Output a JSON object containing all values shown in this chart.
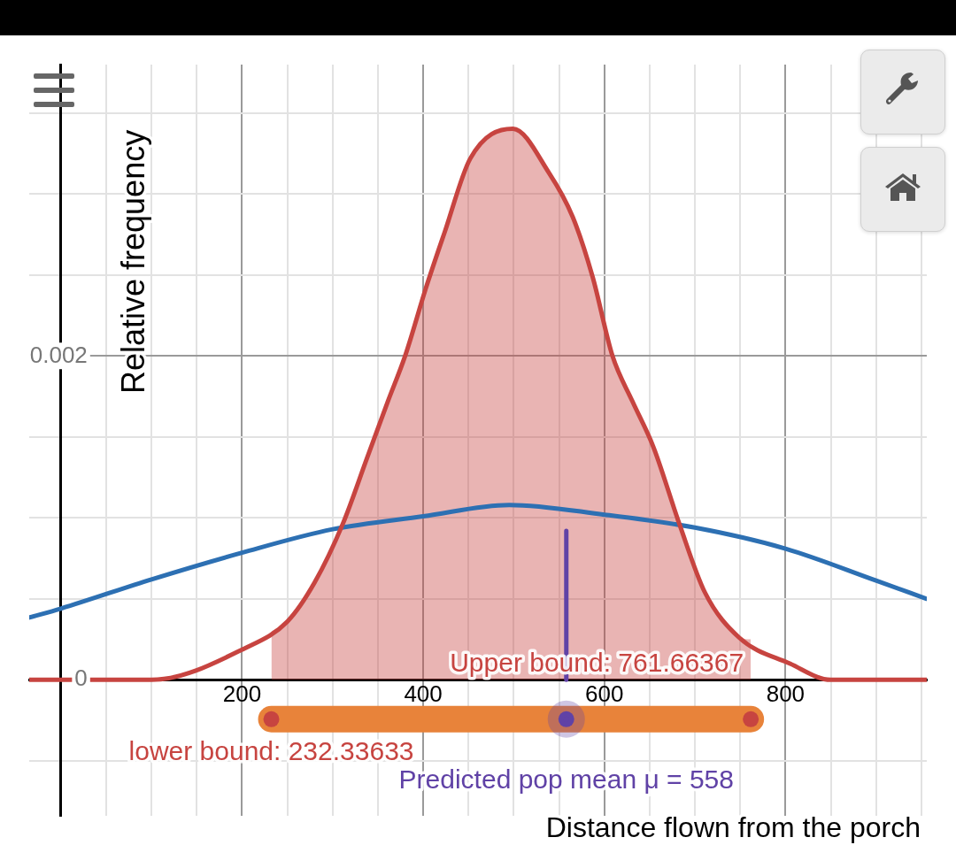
{
  "chart_data": {
    "type": "line",
    "xlabel": "Distance flown from the porch",
    "ylabel": "Relative frequency",
    "xlim": [
      -35,
      956
    ],
    "ylim": [
      -0.00084,
      0.0038
    ],
    "xticks": [
      {
        "value": 0,
        "label": null
      },
      {
        "value": 50,
        "label": null
      },
      {
        "value": 100,
        "label": null
      },
      {
        "value": 150,
        "label": null
      },
      200,
      {
        "value": 250,
        "label": null
      },
      {
        "value": 300,
        "label": null
      },
      {
        "value": 350,
        "label": null
      },
      400,
      {
        "value": 450,
        "label": null
      },
      {
        "value": 500,
        "label": null
      },
      {
        "value": 550,
        "label": null
      },
      600,
      {
        "value": 650,
        "label": null
      },
      {
        "value": 700,
        "label": null
      },
      {
        "value": 750,
        "label": null
      },
      800,
      {
        "value": 850,
        "label": null
      },
      {
        "value": 900,
        "label": null
      },
      {
        "value": 950,
        "label": null
      }
    ],
    "yticks": [
      {
        "value": -0.0005,
        "label": null
      },
      0,
      {
        "value": 0.0005,
        "label": null
      },
      {
        "value": 0.001,
        "label": null
      },
      {
        "value": 0.0015,
        "label": null
      },
      0.002,
      {
        "value": 0.0025,
        "label": null
      },
      {
        "value": 0.003,
        "label": null
      },
      {
        "value": 0.0035,
        "label": null
      }
    ],
    "grid": true,
    "series": [
      {
        "type": "area",
        "color": "#c74440",
        "x": [
          232.33633,
          250,
          280,
          311,
          338,
          361,
          380,
          403,
          424,
          452,
          499,
          539,
          565,
          587,
          609,
          631,
          654,
          683,
          711,
          749,
          761.66367
        ],
        "values": [
          0.0003,
          0.00036,
          0.0006,
          0.00096,
          0.00137,
          0.00172,
          0.002,
          0.00242,
          0.00277,
          0.00322,
          0.003404,
          0.00313,
          0.00286,
          0.00249,
          0.002,
          0.00172,
          0.00144,
          0.00096,
          0.00054,
          0.00026,
          0.00025
        ]
      },
      {
        "type": "line",
        "color": "#2d70b3",
        "x": [
          -35,
          0,
          100,
          200,
          300,
          400,
          495,
          600,
          700,
          800,
          900,
          956
        ],
        "values": [
          0.000385,
          0.00044,
          0.00062,
          0.000785,
          0.00093,
          0.00101,
          0.00108,
          0.00102,
          0.00094,
          0.00081,
          0.000613,
          0.0005
        ]
      },
      {
        "type": "line",
        "color": "#c74440",
        "x": [
          -35,
          0,
          100,
          205,
          250,
          280,
          311,
          338,
          361,
          380,
          403,
          424,
          452,
          499,
          539,
          565,
          587,
          609,
          631,
          654,
          683,
          711,
          749,
          805,
          850,
          956
        ],
        "values": [
          0,
          0,
          0,
          0.0002,
          0.00036,
          0.0006,
          0.00096,
          0.00137,
          0.00172,
          0.002,
          0.00242,
          0.00277,
          0.00322,
          0.003404,
          0.00313,
          0.00286,
          0.00249,
          0.002,
          0.00172,
          0.00144,
          0.00096,
          0.00054,
          0.00026,
          0.0001,
          0,
          0
        ]
      },
      {
        "type": "line",
        "color": "#6042a6",
        "x": [
          558,
          558
        ],
        "values": [
          0,
          0.00092
        ]
      },
      {
        "type": "line",
        "color": "#e8833a",
        "x": [
          232.33633,
          761.66367
        ],
        "values": [
          -0.000243,
          -0.000243
        ]
      },
      {
        "type": "scatter",
        "color": "#c74440",
        "x": [
          232.33633,
          761.66367
        ],
        "values": [
          -0.000243,
          -0.000243
        ]
      },
      {
        "type": "scatter",
        "color": "#6042a6",
        "x": [
          558
        ],
        "values": [
          -0.000243
        ]
      }
    ],
    "annotations": [
      {
        "text": "Upper bound: 761.66367",
        "x": 761.66367,
        "y": -0.000243
      },
      {
        "text": "lower bound: 232.33633",
        "x": 232.33633,
        "y": -0.000243
      },
      {
        "text": "Predicted pop mean μ = 558",
        "x": 558,
        "y": -0.000243
      }
    ]
  }
}
